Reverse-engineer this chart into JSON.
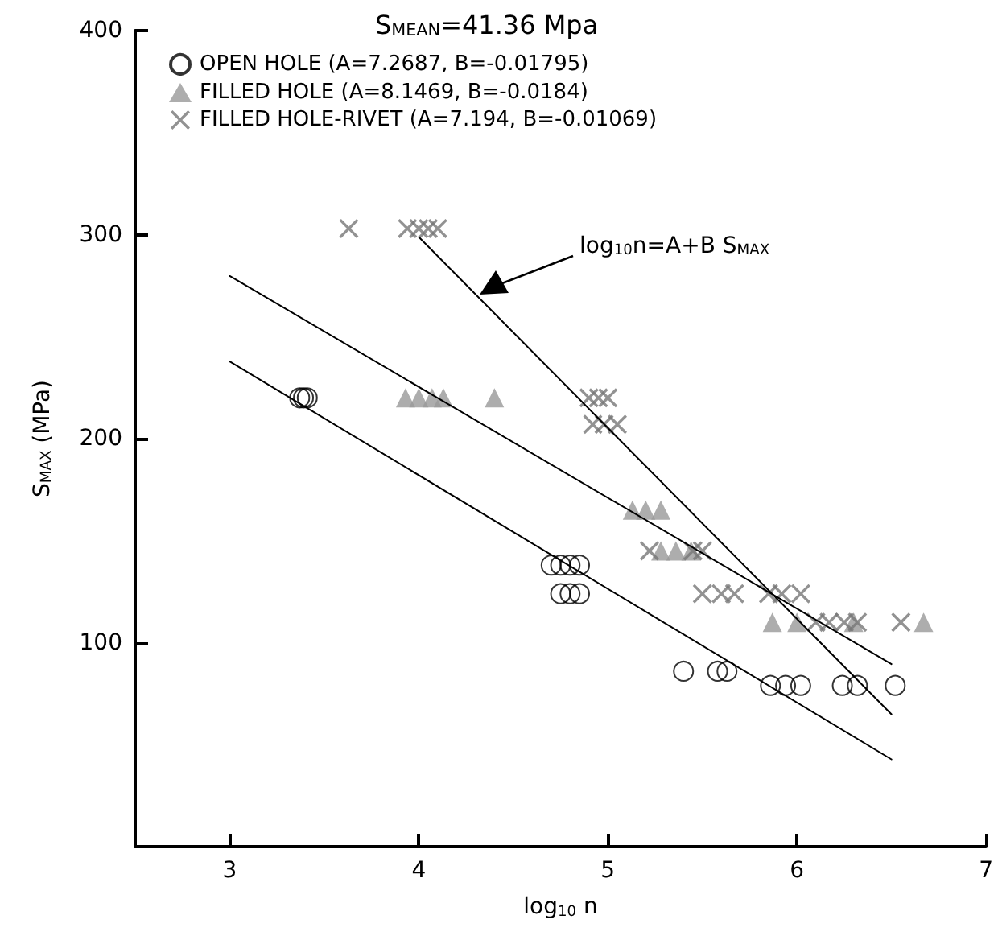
{
  "chart_data": {
    "type": "scatter",
    "title": "S$_{MEAN}$=41.36 Mpa",
    "xlabel": "log$_{10}$ n",
    "ylabel": "S$_{MAX}$ (MPa)",
    "xlim": [
      2.5,
      7
    ],
    "xticks": [
      3,
      4,
      5,
      6,
      7
    ],
    "ylim": [
      0,
      400
    ],
    "yticks": [
      100,
      200,
      300,
      400
    ],
    "grid": false,
    "legend": "top left",
    "series": [
      {
        "name": "OPEN HOLE (A=7.2687, B=-0.01795)",
        "color": "#000000",
        "marker": "circle",
        "x": [
          3.37,
          3.39,
          3.41,
          4.7,
          4.75,
          4.8,
          4.85,
          4.75,
          4.8,
          4.85,
          5.4,
          5.58,
          5.63,
          5.86,
          5.94,
          6.02,
          6.24,
          6.32,
          6.52
        ],
        "values": [
          220,
          220,
          220,
          138,
          138,
          138,
          138,
          124,
          124,
          124,
          86,
          86,
          86,
          79,
          79,
          79,
          79,
          79,
          79
        ]
      },
      {
        "name": "FILLED HOLE (A=8.1469, B=-0.0184)",
        "color": "#999999",
        "marker": "triangle",
        "x": [
          3.93,
          4.0,
          4.07,
          4.13,
          4.4,
          5.13,
          5.2,
          5.28,
          5.28,
          5.36,
          5.44,
          5.87,
          6.0,
          6.3,
          6.67
        ],
        "values": [
          220,
          220,
          220,
          220,
          220,
          165,
          165,
          165,
          145,
          145,
          145,
          110,
          110,
          110,
          110
        ]
      },
      {
        "name": "FILLED HOLE-RIVET (A=7.194, B=-0.01069)",
        "color": "#777777",
        "marker": "cross",
        "x": [
          3.63,
          3.94,
          4.0,
          4.05,
          4.1,
          4.9,
          4.95,
          5.0,
          4.92,
          4.98,
          5.05,
          5.22,
          5.45,
          5.5,
          5.5,
          5.6,
          5.67,
          5.85,
          5.92,
          6.02,
          6.1,
          6.17,
          6.25,
          6.32,
          6.55
        ],
        "values": [
          303,
          303,
          303,
          303,
          303,
          220,
          220,
          220,
          207,
          207,
          207,
          145,
          145,
          145,
          124,
          124,
          124,
          124,
          124,
          124,
          110,
          110,
          110,
          110,
          110
        ]
      },
      {
        "type": "line",
        "color": "#000000",
        "marker": "none",
        "x": [
          3,
          6.5
        ],
        "values": [
          237.8,
          42.8
        ]
      },
      {
        "type": "line",
        "color": "#000000",
        "marker": "none",
        "x": [
          3,
          6.5
        ],
        "values": [
          279.7,
          89.5
        ]
      },
      {
        "type": "line",
        "color": "#000000",
        "marker": "none",
        "x": [
          4.0,
          6.5
        ],
        "values": [
          298.8,
          64.9
        ]
      }
    ],
    "annotations": [
      "log$_{10}$n=A+B S$_{MAX}$"
    ]
  }
}
